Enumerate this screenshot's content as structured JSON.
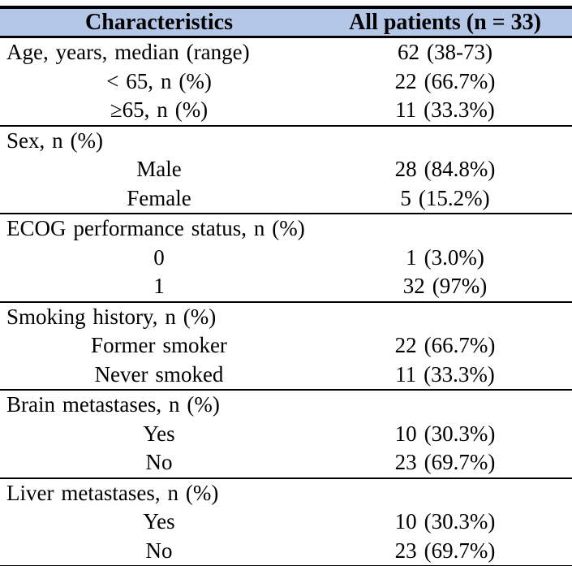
{
  "table": {
    "title": "patient-characteristics",
    "header_bg": "#b4c7e7",
    "border_color": "#000000",
    "columns": [
      "Characteristics",
      "All patients (n = 33)"
    ],
    "sections": [
      {
        "rows": [
          {
            "label": "Age, years, median (range)",
            "value": "62 (38-73)",
            "level": "top"
          },
          {
            "label": "< 65, n (%)",
            "value": "22 (66.7%)",
            "level": "sub"
          },
          {
            "label": "≥65, n (%)",
            "value": "11 (33.3%)",
            "level": "sub"
          }
        ]
      },
      {
        "rows": [
          {
            "label": "Sex, n (%)",
            "value": "",
            "level": "top"
          },
          {
            "label": "Male",
            "value": "28 (84.8%)",
            "level": "sub"
          },
          {
            "label": "Female",
            "value": "5 (15.2%)",
            "level": "sub"
          }
        ]
      },
      {
        "rows": [
          {
            "label": "ECOG performance status, n (%)",
            "value": "",
            "level": "top"
          },
          {
            "label": "0",
            "value": "1 (3.0%)",
            "level": "sub"
          },
          {
            "label": "1",
            "value": "32 (97%)",
            "level": "sub"
          }
        ]
      },
      {
        "rows": [
          {
            "label": "Smoking history, n (%)",
            "value": "",
            "level": "top"
          },
          {
            "label": "Former smoker",
            "value": "22 (66.7%)",
            "level": "sub"
          },
          {
            "label": "Never smoked",
            "value": "11 (33.3%)",
            "level": "sub"
          }
        ]
      },
      {
        "rows": [
          {
            "label": "Brain metastases, n (%)",
            "value": "",
            "level": "top"
          },
          {
            "label": "Yes",
            "value": "10 (30.3%)",
            "level": "sub"
          },
          {
            "label": "No",
            "value": "23 (69.7%)",
            "level": "sub"
          }
        ]
      },
      {
        "rows": [
          {
            "label": "Liver metastases, n (%)",
            "value": "",
            "level": "top"
          },
          {
            "label": "Yes",
            "value": "10 (30.3%)",
            "level": "sub"
          },
          {
            "label": "No",
            "value": "23 (69.7%)",
            "level": "sub"
          }
        ]
      }
    ]
  }
}
